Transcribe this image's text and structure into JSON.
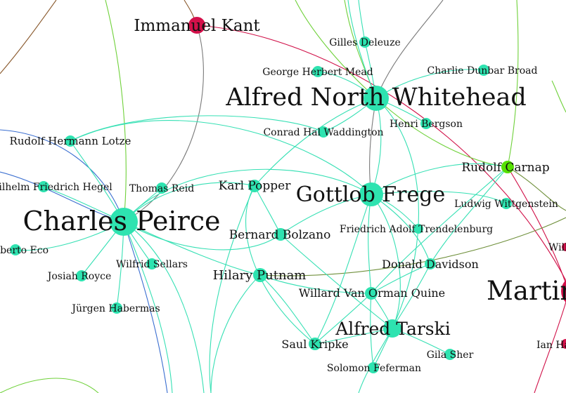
{
  "colors": {
    "background": "#ffffff",
    "node_teal": "#2ee3b0",
    "node_crimson": "#d4104a",
    "node_green": "#55e000",
    "edge_teal": "#36e0b4",
    "edge_blue": "#3a6ed0",
    "edge_crimson": "#d01048",
    "edge_green": "#6fd13a",
    "edge_olive": "#6e8f3a",
    "edge_gray": "#7a7a7a",
    "edge_brown": "#8a5a2e"
  },
  "nodes": {
    "immanuel_kant": "Immanuel Kant",
    "gilles_deleuze": "Gilles Deleuze",
    "george_herbert_mead": "George Herbert Mead",
    "charlie_dunbar_broad": "Charlie Dunbar Broad",
    "alfred_north_whitehead": "Alfred North Whitehead",
    "conrad_hal_waddington": "Conrad Hal Waddington",
    "henri_bergson": "Henri Bergson",
    "rudolf_hermann_lotze": "Rudolf Hermann Lotze",
    "rudolf_carnap": "Rudolf Carnap",
    "wilhelm_friedrich_hegel": "Wilhelm Friedrich Hegel",
    "thomas_reid": "Thomas Reid",
    "karl_popper": "Karl Popper",
    "gottlob_frege": "Gottlob Frege",
    "ludwig_wittgenstein": "Ludwig Wittgenstein",
    "charles_peirce": "Charles Peirce",
    "bernard_bolzano": "Bernard Bolzano",
    "friedrich_adolf_trendelenburg": "Friedrich Adolf Trendelenburg",
    "umberto_eco": "Umberto Eco",
    "wilfrid_sellars": "Wilfrid Sellars",
    "josiah_royce": "Josiah Royce",
    "hilary_putnam": "Hilary Putnam",
    "donald_davidson": "Donald Davidson",
    "willard_van_orman_quine": "Willard Van Orman Quine",
    "martin_heidegger": "Martin Heidegger",
    "jurgen_habermas": "Jürgen Habermas",
    "alfred_tarski": "Alfred Tarski",
    "saul_kripke": "Saul Kripke",
    "gila_sher": "Gila Sher",
    "ian_hacking": "Ian Hacking",
    "solomon_feferman": "Solomon Feferman",
    "william_james": "William James"
  }
}
